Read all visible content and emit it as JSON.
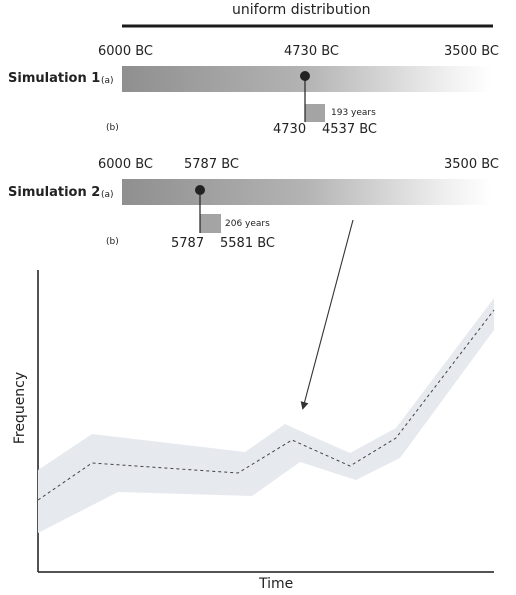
{
  "header": {
    "title": "uniform distribution"
  },
  "simulations": [
    {
      "name": "Simulation 1",
      "label_a": "(a)",
      "label_b": "(b)",
      "range_start": "6000 BC",
      "range_end": "3500 BC",
      "sampled_year_top": "4730 BC",
      "duration": "193 years",
      "b_start": "4730",
      "b_end": "4537 BC"
    },
    {
      "name": "Simulation 2",
      "label_a": "(a)",
      "label_b": "(b)",
      "range_start": "6000 BC",
      "range_end": "3500 BC",
      "sampled_year_top": "5787 BC",
      "duration": "206 years",
      "b_start": "5787",
      "b_end": "5581 BC"
    }
  ],
  "chart": {
    "ylabel": "Frequency",
    "xlabel": "Time"
  },
  "colors": {
    "line": "#444444",
    "band": "#e6e9ee",
    "bar_dark": "#8f8f8f",
    "sample_box": "#a4a4a4"
  }
}
